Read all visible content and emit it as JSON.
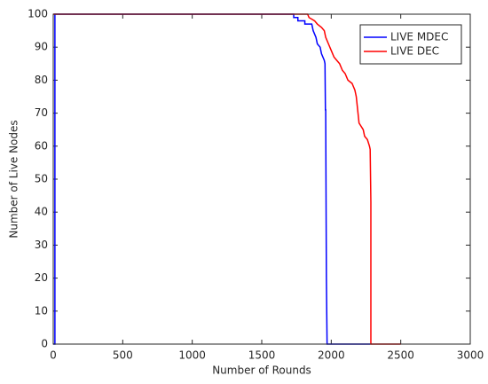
{
  "chart_data": {
    "type": "line",
    "xlabel": "Number of Rounds",
    "ylabel": "Number of Live Nodes",
    "xlim": [
      0,
      3000
    ],
    "xticks": [
      0,
      500,
      1000,
      1500,
      2000,
      2500,
      3000
    ],
    "ylim": [
      0,
      100
    ],
    "yticks": [
      0,
      10,
      20,
      30,
      40,
      50,
      60,
      70,
      80,
      90,
      100
    ],
    "legend": "top-right",
    "series": [
      {
        "name": "LIVE MDEC",
        "color": "#0000ff",
        "x": [
          0,
          12,
          12,
          1730,
          1730,
          1760,
          1760,
          1810,
          1810,
          1860,
          1870,
          1890,
          1900,
          1920,
          1930,
          1940,
          1950,
          1955,
          1958,
          1960,
          1965,
          1970,
          2280
        ],
        "values": [
          0,
          0,
          100,
          100,
          99,
          99,
          98,
          98,
          97,
          97,
          95,
          93,
          91,
          90,
          88,
          87,
          86,
          85,
          71,
          71,
          20,
          0,
          0
        ]
      },
      {
        "name": "LIVE DEC",
        "color": "#ff0000",
        "x": [
          0,
          1830,
          1840,
          1880,
          1900,
          1930,
          1950,
          1960,
          1980,
          2000,
          2020,
          2040,
          2060,
          2080,
          2100,
          2120,
          2150,
          2170,
          2180,
          2190,
          2200,
          2230,
          2240,
          2260,
          2275,
          2280,
          2285,
          2285,
          2500
        ],
        "values": [
          100,
          100,
          99,
          98,
          97,
          96,
          95,
          93,
          91,
          89,
          87,
          86,
          85,
          83,
          82,
          80,
          79,
          77,
          75,
          71,
          67,
          65,
          63,
          62,
          60,
          59,
          43,
          0,
          0
        ]
      }
    ]
  }
}
